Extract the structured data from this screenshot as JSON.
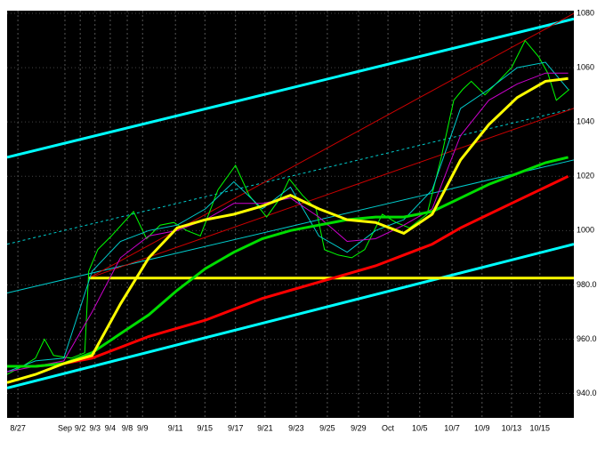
{
  "chart_data": {
    "type": "line",
    "background": "#000000",
    "xlim": [
      0,
      100
    ],
    "xticks": [
      {
        "value": 1.9,
        "label": "8/27"
      },
      {
        "value": 10.2,
        "label": "Sep"
      },
      {
        "value": 12.9,
        "label": "9/2"
      },
      {
        "value": 15.5,
        "label": "9/3"
      },
      {
        "value": 18.2,
        "label": "9/4"
      },
      {
        "value": 21.2,
        "label": "9/8"
      },
      {
        "value": 23.9,
        "label": "9/9"
      },
      {
        "value": 29.7,
        "label": "9/11"
      },
      {
        "value": 34.9,
        "label": "9/15"
      },
      {
        "value": 40.3,
        "label": "9/17"
      },
      {
        "value": 45.5,
        "label": "9/21"
      },
      {
        "value": 51.0,
        "label": "9/23"
      },
      {
        "value": 56.5,
        "label": "9/25"
      },
      {
        "value": 62.0,
        "label": "9/29"
      },
      {
        "value": 67.2,
        "label": "Oct"
      },
      {
        "value": 72.8,
        "label": "10/5"
      },
      {
        "value": 78.5,
        "label": "10/7"
      },
      {
        "value": 83.8,
        "label": "10/9"
      },
      {
        "value": 89.0,
        "label": "10/13"
      },
      {
        "value": 94.0,
        "label": "10/15"
      }
    ],
    "ylim": [
      931,
      1081
    ],
    "yticks": [
      1080,
      1060,
      1040,
      1020,
      1000,
      {
        "value": 980,
        "label": "980.0"
      },
      {
        "value": 960,
        "label": "960.0"
      },
      {
        "value": 940,
        "label": "940.0"
      }
    ],
    "grid": true,
    "series": [
      {
        "color": "#00ffff",
        "width": 3,
        "x": [
          0,
          100
        ],
        "values": [
          1027,
          1078
        ]
      },
      {
        "color": "#00ffff",
        "width": 3,
        "x": [
          0,
          100
        ],
        "values": [
          942,
          995
        ]
      },
      {
        "color": "#00cccc",
        "width": 1,
        "x": [
          0,
          100
        ],
        "values": [
          977,
          1026
        ]
      },
      {
        "color": "#00cccc",
        "width": 1,
        "dash": true,
        "x": [
          0,
          100
        ],
        "values": [
          995,
          1045
        ]
      },
      {
        "color": "#cc0000",
        "width": 1,
        "x": [
          14.4,
          100
        ],
        "values": [
          982.5,
          1080
        ]
      },
      {
        "color": "#cc0000",
        "width": 1,
        "x": [
          14.4,
          100
        ],
        "values": [
          982.5,
          1045
        ]
      },
      {
        "color": "#ffff00",
        "width": 3,
        "x": [
          14.4,
          100
        ],
        "values": [
          982.5,
          982.5
        ]
      },
      {
        "color": "#00ff00",
        "width": 1,
        "x": [
          0,
          2.7,
          5,
          6.6,
          8.2,
          11.3,
          13.7,
          14.4,
          16,
          18.4,
          22.3,
          24.6,
          27,
          29.4,
          31.7,
          34.1,
          37.2,
          40.3,
          42.7,
          45.8,
          48.2,
          49.8,
          52.1,
          54.5,
          56,
          58.4,
          60.8,
          63.1,
          66.2,
          68.6,
          71,
          74.1,
          76.5,
          78.8,
          80.4,
          81.9,
          84.3,
          86.7,
          89,
          91.4,
          93.8,
          95.4,
          96.9,
          99.2
        ],
        "values": [
          947,
          950,
          953,
          960,
          954,
          953,
          955,
          985,
          993,
          998,
          1007,
          997,
          1002,
          1003,
          1000,
          998,
          1015,
          1024,
          1013,
          1005,
          1012,
          1019,
          1013,
          1008,
          993,
          991,
          990,
          993,
          1006,
          1003,
          1001,
          1006,
          1026,
          1048,
          1052,
          1055,
          1050,
          1055,
          1060,
          1070,
          1064,
          1058,
          1048,
          1052
        ]
      },
      {
        "color": "#00cccc",
        "width": 1,
        "x": [
          0,
          5,
          10,
          15,
          20,
          25,
          30,
          35,
          40,
          45,
          50,
          55,
          60,
          65,
          70,
          75,
          80,
          85,
          90,
          95,
          99
        ],
        "values": [
          948,
          952,
          953,
          985,
          996,
          1000,
          1002,
          1008,
          1018,
          1008,
          1016,
          998,
          992,
          1000,
          1004,
          1015,
          1045,
          1052,
          1060,
          1062,
          1052
        ]
      },
      {
        "color": "#cc00cc",
        "width": 1,
        "x": [
          0,
          5,
          10,
          15,
          20,
          25,
          30,
          35,
          40,
          45,
          50,
          55,
          60,
          65,
          70,
          75,
          80,
          85,
          90,
          95,
          99
        ],
        "values": [
          948,
          950,
          952,
          970,
          990,
          998,
          1000,
          1004,
          1010,
          1010,
          1012,
          1005,
          996,
          997,
          1002,
          1008,
          1035,
          1048,
          1054,
          1058,
          1058
        ]
      },
      {
        "color": "#ff0000",
        "width": 3,
        "x": [
          0,
          5,
          10,
          15,
          20,
          25,
          30,
          35,
          40,
          45,
          50,
          55,
          60,
          65,
          70,
          75,
          80,
          85,
          90,
          95,
          99
        ],
        "values": [
          950,
          950,
          951,
          953,
          957,
          961,
          964,
          967,
          971,
          975,
          978,
          981,
          984,
          987,
          991,
          995,
          1001,
          1006,
          1011,
          1016,
          1020
        ]
      },
      {
        "color": "#00dd00",
        "width": 3,
        "x": [
          0,
          5,
          10,
          15,
          20,
          25,
          30,
          35,
          40,
          45,
          50,
          55,
          60,
          65,
          70,
          75,
          80,
          85,
          90,
          95,
          99
        ],
        "values": [
          950,
          950,
          951,
          955,
          962,
          969,
          978,
          986,
          992,
          997,
          1000,
          1002,
          1004,
          1005,
          1005,
          1007,
          1012,
          1017,
          1021,
          1025,
          1027
        ]
      },
      {
        "color": "#ffff00",
        "width": 3,
        "x": [
          0,
          5,
          10,
          15,
          20,
          25,
          30,
          35,
          40,
          45,
          50,
          55,
          60,
          65,
          70,
          75,
          80,
          85,
          90,
          95,
          99
        ],
        "values": [
          944,
          947,
          951,
          954,
          973,
          990,
          1001,
          1004,
          1006,
          1009,
          1013,
          1008,
          1004,
          1003,
          999,
          1006,
          1026,
          1039,
          1049,
          1055,
          1056
        ]
      }
    ]
  }
}
